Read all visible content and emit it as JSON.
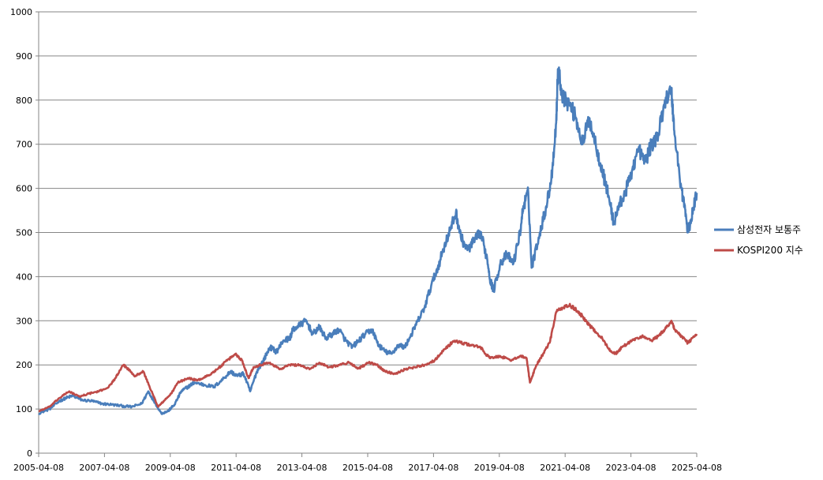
{
  "chart_data": {
    "type": "line",
    "title": "",
    "xlabel": "",
    "ylabel": "",
    "ylim": [
      0,
      1000
    ],
    "y_ticks": [
      0,
      100,
      200,
      300,
      400,
      500,
      600,
      700,
      800,
      900,
      1000
    ],
    "x_range": [
      2005.27,
      2025.27
    ],
    "x_tick_labels": [
      "2005-04-08",
      "2007-04-08",
      "2009-04-08",
      "2011-04-08",
      "2013-04-08",
      "2015-04-08",
      "2017-04-08",
      "2019-04-08",
      "2021-04-08",
      "2023-04-08",
      "2025-04-08"
    ],
    "grid": true,
    "legend_position": "right",
    "series": [
      {
        "name": "삼성전자 보통주",
        "color": "#4a7ebb",
        "points": [
          [
            2005.27,
            90
          ],
          [
            2005.6,
            100
          ],
          [
            2005.9,
            118
          ],
          [
            2006.1,
            125
          ],
          [
            2006.3,
            130
          ],
          [
            2006.6,
            120
          ],
          [
            2006.9,
            118
          ],
          [
            2007.2,
            112
          ],
          [
            2007.5,
            110
          ],
          [
            2007.8,
            107
          ],
          [
            2008.1,
            105
          ],
          [
            2008.4,
            112
          ],
          [
            2008.6,
            140
          ],
          [
            2008.8,
            115
          ],
          [
            2009.0,
            90
          ],
          [
            2009.2,
            95
          ],
          [
            2009.4,
            110
          ],
          [
            2009.6,
            140
          ],
          [
            2009.8,
            150
          ],
          [
            2010.0,
            160
          ],
          [
            2010.3,
            155
          ],
          [
            2010.6,
            150
          ],
          [
            2010.9,
            170
          ],
          [
            2011.1,
            185
          ],
          [
            2011.3,
            175
          ],
          [
            2011.5,
            180
          ],
          [
            2011.7,
            140
          ],
          [
            2011.9,
            185
          ],
          [
            2012.1,
            210
          ],
          [
            2012.3,
            240
          ],
          [
            2012.5,
            230
          ],
          [
            2012.7,
            255
          ],
          [
            2012.9,
            260
          ],
          [
            2013.0,
            280
          ],
          [
            2013.2,
            290
          ],
          [
            2013.4,
            300
          ],
          [
            2013.6,
            270
          ],
          [
            2013.8,
            285
          ],
          [
            2014.0,
            260
          ],
          [
            2014.2,
            270
          ],
          [
            2014.4,
            280
          ],
          [
            2014.6,
            255
          ],
          [
            2014.8,
            240
          ],
          [
            2015.0,
            255
          ],
          [
            2015.2,
            270
          ],
          [
            2015.4,
            280
          ],
          [
            2015.6,
            245
          ],
          [
            2015.8,
            230
          ],
          [
            2016.0,
            225
          ],
          [
            2016.2,
            245
          ],
          [
            2016.4,
            240
          ],
          [
            2016.6,
            270
          ],
          [
            2016.8,
            300
          ],
          [
            2017.0,
            330
          ],
          [
            2017.2,
            380
          ],
          [
            2017.4,
            420
          ],
          [
            2017.6,
            470
          ],
          [
            2017.8,
            510
          ],
          [
            2017.95,
            545
          ],
          [
            2018.1,
            490
          ],
          [
            2018.3,
            460
          ],
          [
            2018.5,
            480
          ],
          [
            2018.7,
            500
          ],
          [
            2018.9,
            440
          ],
          [
            2019.0,
            390
          ],
          [
            2019.1,
            370
          ],
          [
            2019.3,
            430
          ],
          [
            2019.5,
            450
          ],
          [
            2019.7,
            430
          ],
          [
            2019.9,
            500
          ],
          [
            2020.0,
            560
          ],
          [
            2020.15,
            590
          ],
          [
            2020.25,
            420
          ],
          [
            2020.5,
            500
          ],
          [
            2020.7,
            560
          ],
          [
            2020.85,
            620
          ],
          [
            2021.0,
            750
          ],
          [
            2021.05,
            870
          ],
          [
            2021.2,
            810
          ],
          [
            2021.4,
            790
          ],
          [
            2021.6,
            760
          ],
          [
            2021.8,
            700
          ],
          [
            2022.0,
            760
          ],
          [
            2022.2,
            700
          ],
          [
            2022.4,
            640
          ],
          [
            2022.6,
            580
          ],
          [
            2022.75,
            520
          ],
          [
            2022.9,
            560
          ],
          [
            2023.1,
            590
          ],
          [
            2023.3,
            640
          ],
          [
            2023.5,
            690
          ],
          [
            2023.7,
            660
          ],
          [
            2023.9,
            700
          ],
          [
            2024.1,
            720
          ],
          [
            2024.3,
            800
          ],
          [
            2024.5,
            820
          ],
          [
            2024.6,
            720
          ],
          [
            2024.8,
            600
          ],
          [
            2024.9,
            560
          ],
          [
            2025.0,
            500
          ],
          [
            2025.1,
            530
          ],
          [
            2025.27,
            590
          ]
        ]
      },
      {
        "name": "KOSPI200 지수",
        "color": "#be4b48",
        "points": [
          [
            2005.27,
            95
          ],
          [
            2005.6,
            105
          ],
          [
            2005.9,
            125
          ],
          [
            2006.2,
            140
          ],
          [
            2006.5,
            128
          ],
          [
            2006.8,
            135
          ],
          [
            2007.1,
            140
          ],
          [
            2007.4,
            150
          ],
          [
            2007.6,
            170
          ],
          [
            2007.85,
            200
          ],
          [
            2008.0,
            190
          ],
          [
            2008.2,
            175
          ],
          [
            2008.45,
            185
          ],
          [
            2008.7,
            140
          ],
          [
            2008.9,
            105
          ],
          [
            2009.1,
            120
          ],
          [
            2009.3,
            135
          ],
          [
            2009.5,
            160
          ],
          [
            2009.8,
            170
          ],
          [
            2010.1,
            165
          ],
          [
            2010.4,
            175
          ],
          [
            2010.7,
            190
          ],
          [
            2011.0,
            210
          ],
          [
            2011.25,
            225
          ],
          [
            2011.45,
            210
          ],
          [
            2011.65,
            170
          ],
          [
            2011.8,
            195
          ],
          [
            2012.0,
            200
          ],
          [
            2012.3,
            205
          ],
          [
            2012.6,
            190
          ],
          [
            2012.9,
            200
          ],
          [
            2013.2,
            200
          ],
          [
            2013.5,
            190
          ],
          [
            2013.8,
            205
          ],
          [
            2014.1,
            195
          ],
          [
            2014.4,
            200
          ],
          [
            2014.7,
            205
          ],
          [
            2015.0,
            192
          ],
          [
            2015.3,
            205
          ],
          [
            2015.55,
            200
          ],
          [
            2015.8,
            185
          ],
          [
            2016.1,
            180
          ],
          [
            2016.4,
            190
          ],
          [
            2016.7,
            195
          ],
          [
            2017.0,
            200
          ],
          [
            2017.3,
            210
          ],
          [
            2017.6,
            235
          ],
          [
            2017.9,
            255
          ],
          [
            2018.1,
            250
          ],
          [
            2018.4,
            245
          ],
          [
            2018.7,
            240
          ],
          [
            2018.85,
            225
          ],
          [
            2019.0,
            215
          ],
          [
            2019.3,
            220
          ],
          [
            2019.6,
            210
          ],
          [
            2019.9,
            220
          ],
          [
            2020.1,
            215
          ],
          [
            2020.2,
            160
          ],
          [
            2020.4,
            200
          ],
          [
            2020.6,
            225
          ],
          [
            2020.8,
            250
          ],
          [
            2021.0,
            320
          ],
          [
            2021.2,
            330
          ],
          [
            2021.4,
            335
          ],
          [
            2021.6,
            325
          ],
          [
            2021.8,
            310
          ],
          [
            2022.0,
            290
          ],
          [
            2022.2,
            275
          ],
          [
            2022.4,
            260
          ],
          [
            2022.6,
            235
          ],
          [
            2022.8,
            225
          ],
          [
            2023.0,
            240
          ],
          [
            2023.3,
            255
          ],
          [
            2023.6,
            265
          ],
          [
            2023.9,
            255
          ],
          [
            2024.1,
            265
          ],
          [
            2024.3,
            280
          ],
          [
            2024.5,
            300
          ],
          [
            2024.6,
            280
          ],
          [
            2024.8,
            265
          ],
          [
            2025.0,
            250
          ],
          [
            2025.27,
            270
          ]
        ]
      }
    ]
  }
}
